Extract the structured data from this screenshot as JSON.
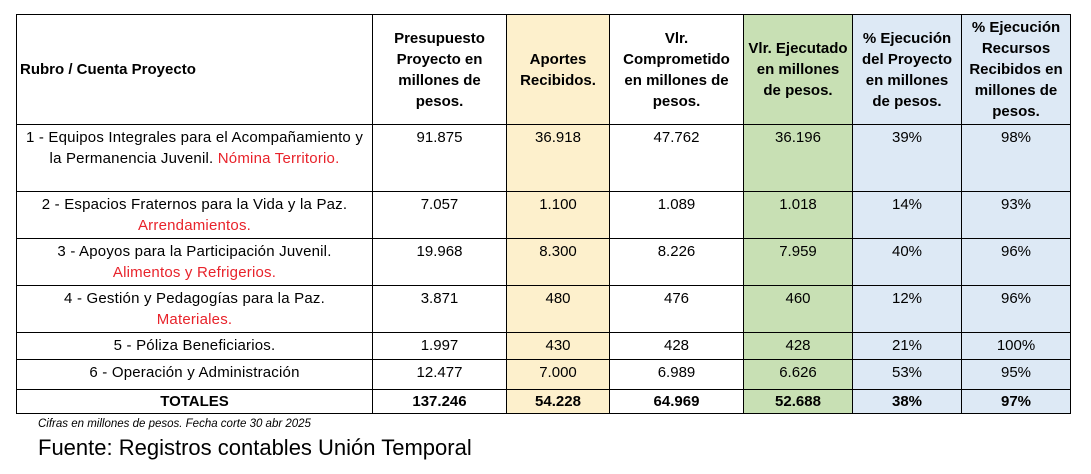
{
  "headers": {
    "rubro": "Rubro / Cuenta Proyecto",
    "presupuesto": "Presupuesto Proyecto en millones de pesos.",
    "aportes": "Aportes Recibidos.",
    "comprometido": "Vlr. Comprometido en millones de pesos.",
    "ejecutado": "Vlr. Ejecutado en millones de pesos.",
    "pct_proyecto": "% Ejecución del Proyecto en millones de pesos.",
    "pct_recursos": "% Ejecución Recursos Recibidos en millones de pesos."
  },
  "rows": [
    {
      "rubro": "1 - Equipos Integrales para el Acompañamiento y la Permanencia Juvenil.",
      "detalle": "Nómina Territorio.",
      "presupuesto": "91.875",
      "aportes": "36.918",
      "comprometido": "47.762",
      "ejecutado": "36.196",
      "pct_proyecto": "39%",
      "pct_recursos": "98%"
    },
    {
      "rubro": "2 - Espacios Fraternos para la Vida y la Paz.",
      "detalle": "Arrendamientos.",
      "presupuesto": "7.057",
      "aportes": "1.100",
      "comprometido": "1.089",
      "ejecutado": "1.018",
      "pct_proyecto": "14%",
      "pct_recursos": "93%"
    },
    {
      "rubro": "3 - Apoyos para la Participación Juvenil.",
      "detalle": "Alimentos y Refrigerios.",
      "presupuesto": "19.968",
      "aportes": "8.300",
      "comprometido": "8.226",
      "ejecutado": "7.959",
      "pct_proyecto": "40%",
      "pct_recursos": "96%"
    },
    {
      "rubro": "4 - Gestión y Pedagogías para la Paz.",
      "detalle": "Materiales.",
      "presupuesto": "3.871",
      "aportes": "480",
      "comprometido": "476",
      "ejecutado": "460",
      "pct_proyecto": "12%",
      "pct_recursos": "96%"
    },
    {
      "rubro": "5 - Póliza Beneficiarios.",
      "detalle": "",
      "presupuesto": "1.997",
      "aportes": "430",
      "comprometido": "428",
      "ejecutado": "428",
      "pct_proyecto": "21%",
      "pct_recursos": "100%"
    },
    {
      "rubro": "6 - Operación y Administración",
      "detalle": "",
      "presupuesto": "12.477",
      "aportes": "7.000",
      "comprometido": "6.989",
      "ejecutado": "6.626",
      "pct_proyecto": "53%",
      "pct_recursos": "95%"
    }
  ],
  "totals": {
    "label": "TOTALES",
    "presupuesto": "137.246",
    "aportes": "54.228",
    "comprometido": "64.969",
    "ejecutado": "52.688",
    "pct_proyecto": "38%",
    "pct_recursos": "97%"
  },
  "note": "Cifras en millones de pesos. Fecha corte 30 abr 2025",
  "source": "Fuente: Registros contables Unión Temporal",
  "colors": {
    "aportes_bg": "#fdf0cc",
    "ejecutado_bg": "#c8e0b4",
    "porcentaje_bg": "#dde9f5",
    "detalle_text": "#e8232b"
  }
}
